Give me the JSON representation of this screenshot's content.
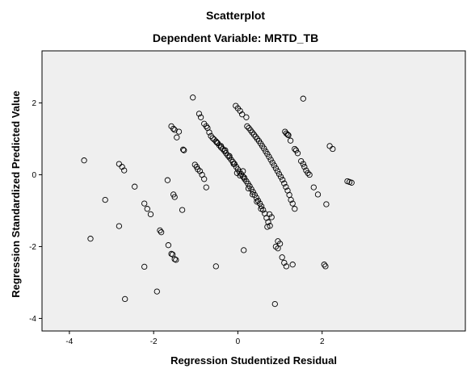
{
  "chart_data": {
    "type": "scatter",
    "title": "Scatterplot",
    "subtitle": "Dependent Variable: MRTD_TB",
    "xlabel": "Regression Studentized Residual",
    "ylabel": "Regression Standardized Predicted Value",
    "xlim": [
      -4.65,
      5.4
    ],
    "ylim": [
      -4.35,
      3.45
    ],
    "x_ticks": [
      -4,
      -2,
      0,
      2
    ],
    "y_ticks": [
      -4,
      -2,
      0,
      2
    ],
    "marker": "open-circle",
    "plot_background": "#efefef",
    "marker_color": "#000000",
    "grid": false,
    "points": [
      [
        -3.65,
        0.4
      ],
      [
        -3.5,
        -1.78
      ],
      [
        -3.15,
        -0.7
      ],
      [
        -2.82,
        0.3
      ],
      [
        -2.75,
        0.22
      ],
      [
        -2.7,
        0.12
      ],
      [
        -2.82,
        -1.43
      ],
      [
        -2.68,
        -3.46
      ],
      [
        -2.45,
        -0.33
      ],
      [
        -2.22,
        -0.8
      ],
      [
        -2.15,
        -0.95
      ],
      [
        -2.07,
        -1.1
      ],
      [
        -2.22,
        -2.56
      ],
      [
        -1.92,
        -3.25
      ],
      [
        -1.85,
        -1.55
      ],
      [
        -1.82,
        -1.6
      ],
      [
        -1.67,
        -0.15
      ],
      [
        -1.65,
        -1.96
      ],
      [
        -1.58,
        1.35
      ],
      [
        -1.53,
        1.28
      ],
      [
        -1.5,
        1.25
      ],
      [
        -1.45,
        1.04
      ],
      [
        -1.53,
        -0.55
      ],
      [
        -1.5,
        -0.62
      ],
      [
        -1.58,
        -2.2
      ],
      [
        -1.55,
        -2.22
      ],
      [
        -1.5,
        -2.35
      ],
      [
        -1.47,
        -2.37
      ],
      [
        -1.32,
        -0.98
      ],
      [
        -1.3,
        0.7
      ],
      [
        -1.28,
        0.68
      ],
      [
        -1.07,
        2.15
      ],
      [
        -1.02,
        0.28
      ],
      [
        -0.98,
        0.22
      ],
      [
        -0.95,
        0.15
      ],
      [
        -0.9,
        0.1
      ],
      [
        -0.85,
        0.0
      ],
      [
        -0.8,
        -0.12
      ],
      [
        -0.75,
        -0.35
      ],
      [
        -0.92,
        1.7
      ],
      [
        -0.88,
        1.6
      ],
      [
        -0.8,
        1.42
      ],
      [
        -0.75,
        1.35
      ],
      [
        -0.72,
        1.3
      ],
      [
        -0.68,
        1.18
      ],
      [
        -0.64,
        1.08
      ],
      [
        -0.6,
        1.02
      ],
      [
        -0.56,
        0.98
      ],
      [
        -0.52,
        0.93
      ],
      [
        -0.48,
        0.88
      ],
      [
        -0.44,
        0.82
      ],
      [
        -0.4,
        0.76
      ],
      [
        -0.36,
        0.72
      ],
      [
        -0.32,
        0.66
      ],
      [
        -0.28,
        0.6
      ],
      [
        -0.24,
        0.54
      ],
      [
        -0.2,
        0.48
      ],
      [
        -0.16,
        0.42
      ],
      [
        -0.12,
        0.36
      ],
      [
        -0.08,
        0.3
      ],
      [
        -0.04,
        0.22
      ],
      [
        0.0,
        0.15
      ],
      [
        0.04,
        0.08
      ],
      [
        0.08,
        0.02
      ],
      [
        0.12,
        -0.05
      ],
      [
        0.16,
        -0.12
      ],
      [
        0.2,
        -0.18
      ],
      [
        0.24,
        -0.25
      ],
      [
        0.28,
        -0.32
      ],
      [
        0.32,
        -0.4
      ],
      [
        0.36,
        -0.48
      ],
      [
        0.4,
        -0.56
      ],
      [
        0.44,
        -0.64
      ],
      [
        0.48,
        -0.72
      ],
      [
        0.52,
        -0.8
      ],
      [
        0.56,
        -0.88
      ],
      [
        0.6,
        -0.98
      ],
      [
        0.64,
        -1.08
      ],
      [
        0.68,
        -1.2
      ],
      [
        0.72,
        -1.32
      ],
      [
        0.76,
        -1.42
      ],
      [
        -0.52,
        -2.55
      ],
      [
        -0.05,
        1.92
      ],
      [
        0.0,
        1.85
      ],
      [
        0.05,
        1.78
      ],
      [
        0.1,
        1.68
      ],
      [
        0.14,
        -2.1
      ],
      [
        0.22,
        1.35
      ],
      [
        0.26,
        1.3
      ],
      [
        0.3,
        1.24
      ],
      [
        0.34,
        1.18
      ],
      [
        0.38,
        1.12
      ],
      [
        0.42,
        1.06
      ],
      [
        0.46,
        1.0
      ],
      [
        0.5,
        0.94
      ],
      [
        0.54,
        0.87
      ],
      [
        0.58,
        0.8
      ],
      [
        0.62,
        0.73
      ],
      [
        0.66,
        0.65
      ],
      [
        0.7,
        0.58
      ],
      [
        0.74,
        0.5
      ],
      [
        0.78,
        0.42
      ],
      [
        0.82,
        0.34
      ],
      [
        0.86,
        0.26
      ],
      [
        0.9,
        0.18
      ],
      [
        0.94,
        0.1
      ],
      [
        0.98,
        0.02
      ],
      [
        1.02,
        -0.06
      ],
      [
        1.06,
        -0.14
      ],
      [
        1.1,
        -0.24
      ],
      [
        1.14,
        -0.34
      ],
      [
        1.18,
        -0.44
      ],
      [
        1.22,
        -0.56
      ],
      [
        1.26,
        -0.7
      ],
      [
        1.3,
        -0.8
      ],
      [
        0.9,
        -2.0
      ],
      [
        0.95,
        -2.05
      ],
      [
        1.05,
        -2.3
      ],
      [
        1.1,
        -2.45
      ],
      [
        1.15,
        -2.55
      ],
      [
        0.75,
        -1.1
      ],
      [
        0.8,
        -1.18
      ],
      [
        1.0,
        -1.92
      ],
      [
        0.95,
        -1.85
      ],
      [
        0.88,
        -3.6
      ],
      [
        1.12,
        1.2
      ],
      [
        1.15,
        1.15
      ],
      [
        1.18,
        1.12
      ],
      [
        1.25,
        0.95
      ],
      [
        1.35,
        0.72
      ],
      [
        1.38,
        0.68
      ],
      [
        1.42,
        0.6
      ],
      [
        1.5,
        0.38
      ],
      [
        1.55,
        0.3
      ],
      [
        1.58,
        0.22
      ],
      [
        1.62,
        0.12
      ],
      [
        1.66,
        0.05
      ],
      [
        1.7,
        0.0
      ],
      [
        1.55,
        2.12
      ],
      [
        1.8,
        -0.35
      ],
      [
        1.9,
        -0.55
      ],
      [
        2.05,
        -2.5
      ],
      [
        2.08,
        -2.55
      ],
      [
        2.1,
        -0.82
      ],
      [
        2.18,
        0.8
      ],
      [
        2.25,
        0.72
      ],
      [
        2.6,
        -0.18
      ],
      [
        2.65,
        -0.2
      ],
      [
        2.7,
        -0.22
      ],
      [
        1.3,
        -2.5
      ],
      [
        0.7,
        -1.45
      ],
      [
        0.55,
        -0.95
      ],
      [
        0.45,
        -0.75
      ],
      [
        0.35,
        -0.55
      ],
      [
        0.25,
        -0.38
      ],
      [
        -0.1,
        0.3
      ],
      [
        -0.2,
        0.52
      ],
      [
        -0.3,
        0.68
      ],
      [
        -0.4,
        0.8
      ],
      [
        -0.5,
        0.9
      ],
      [
        1.2,
        1.1
      ],
      [
        0.2,
        1.6
      ],
      [
        -1.4,
        1.2
      ],
      [
        1.35,
        -0.95
      ],
      [
        0.05,
        -0.02
      ],
      [
        0.15,
        -0.08
      ],
      [
        -0.02,
        0.05
      ],
      [
        0.12,
        0.1
      ]
    ]
  }
}
